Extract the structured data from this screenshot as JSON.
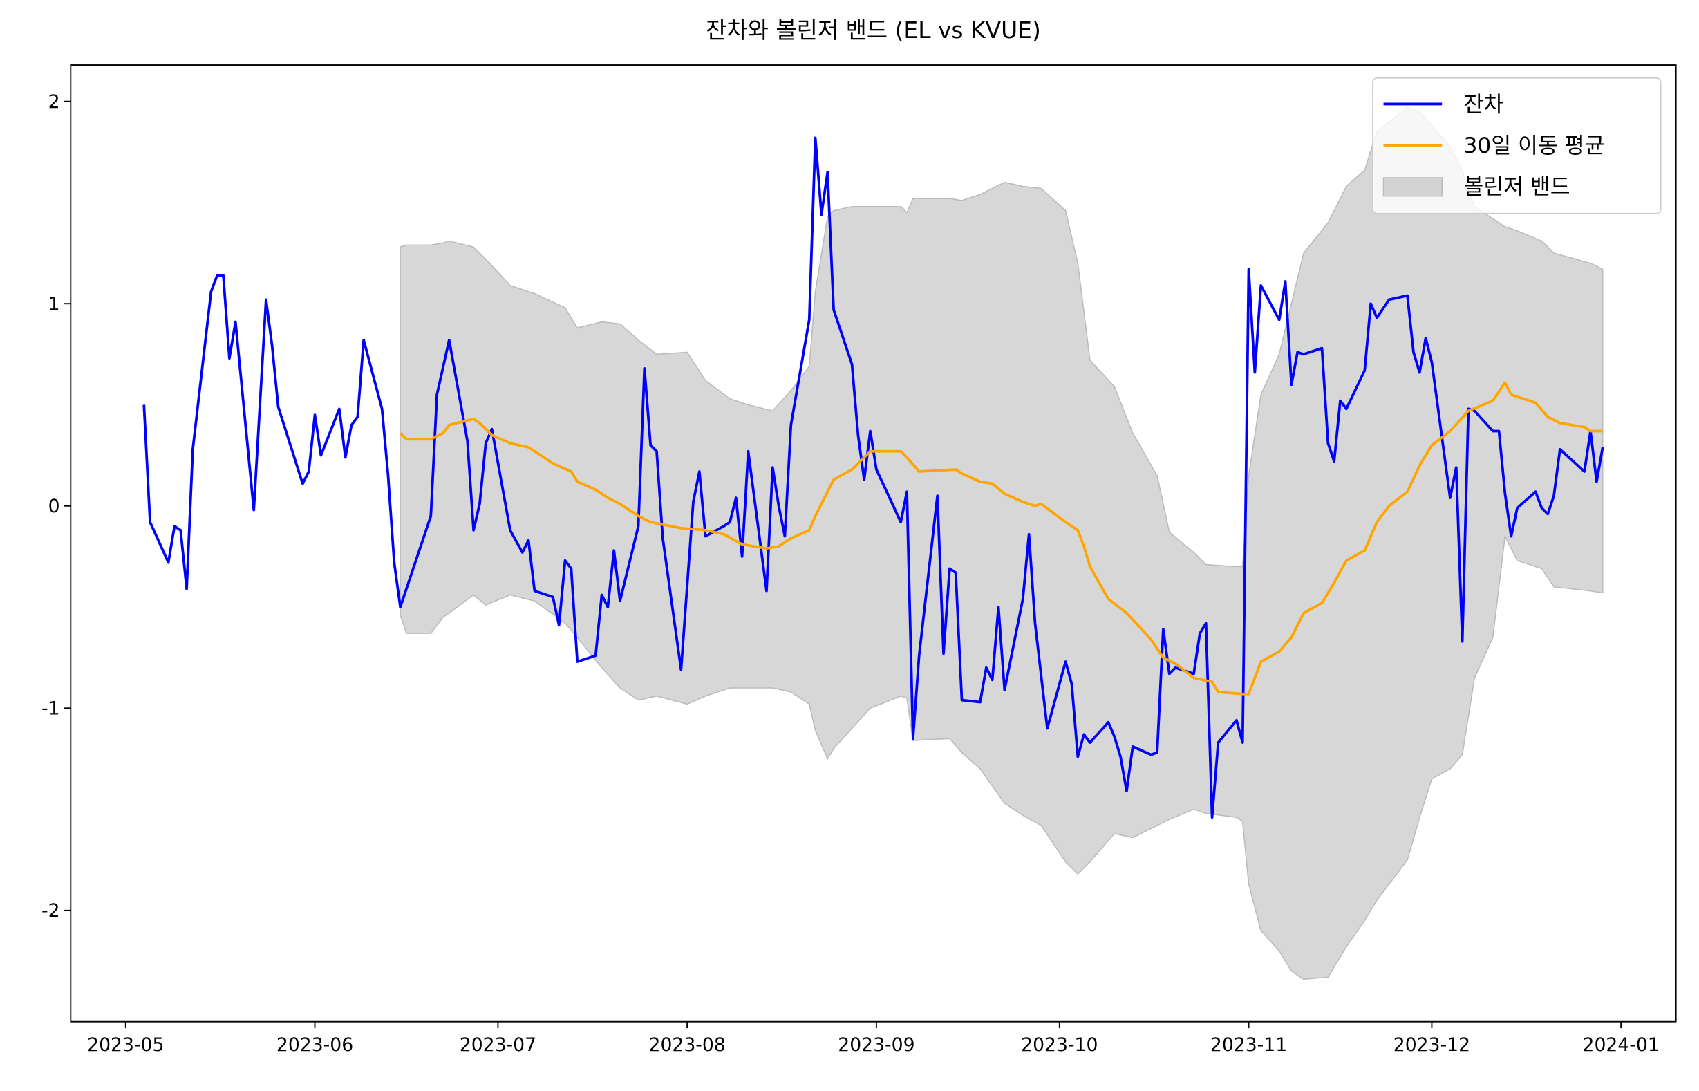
{
  "chart_data": {
    "type": "line",
    "title": "잔차와 볼린저 밴드 (EL vs KVUE)",
    "xlim": [
      "2023-04-22",
      "2024-01-10"
    ],
    "xticks": [
      {
        "value": "2023-05-01",
        "label": "2023-05"
      },
      {
        "value": "2023-06-01",
        "label": "2023-06"
      },
      {
        "value": "2023-07-01",
        "label": "2023-07"
      },
      {
        "value": "2023-08-01",
        "label": "2023-08"
      },
      {
        "value": "2023-09-01",
        "label": "2023-09"
      },
      {
        "value": "2023-10-01",
        "label": "2023-10"
      },
      {
        "value": "2023-11-01",
        "label": "2023-11"
      },
      {
        "value": "2023-12-01",
        "label": "2023-12"
      },
      {
        "value": "2024-01-01",
        "label": "2024-01"
      }
    ],
    "ylim": [
      -2.55,
      2.18
    ],
    "yticks": [
      -2,
      -1,
      0,
      1,
      2
    ],
    "legend": "upper right",
    "series": [
      {
        "name": "잔차",
        "color": "#0000ff",
        "x": [
          "2023-05-04",
          "2023-05-05",
          "2023-05-08",
          "2023-05-09",
          "2023-05-10",
          "2023-05-11",
          "2023-05-12",
          "2023-05-15",
          "2023-05-16",
          "2023-05-17",
          "2023-05-18",
          "2023-05-19",
          "2023-05-22",
          "2023-05-24",
          "2023-05-25",
          "2023-05-26",
          "2023-05-30",
          "2023-05-31",
          "2023-06-01",
          "2023-06-02",
          "2023-06-05",
          "2023-06-06",
          "2023-06-07",
          "2023-06-08",
          "2023-06-09",
          "2023-06-12",
          "2023-06-13",
          "2023-06-14",
          "2023-06-15",
          "2023-06-20",
          "2023-06-21",
          "2023-06-23",
          "2023-06-26",
          "2023-06-27",
          "2023-06-28",
          "2023-06-29",
          "2023-06-30",
          "2023-07-03",
          "2023-07-05",
          "2023-07-06",
          "2023-07-07",
          "2023-07-10",
          "2023-07-11",
          "2023-07-12",
          "2023-07-13",
          "2023-07-14",
          "2023-07-17",
          "2023-07-18",
          "2023-07-19",
          "2023-07-20",
          "2023-07-21",
          "2023-07-24",
          "2023-07-25",
          "2023-07-26",
          "2023-07-27",
          "2023-07-28",
          "2023-07-31",
          "2023-08-02",
          "2023-08-03",
          "2023-08-04",
          "2023-08-07",
          "2023-08-08",
          "2023-08-09",
          "2023-08-10",
          "2023-08-11",
          "2023-08-14",
          "2023-08-15",
          "2023-08-16",
          "2023-08-17",
          "2023-08-18",
          "2023-08-21",
          "2023-08-22",
          "2023-08-23",
          "2023-08-24",
          "2023-08-25",
          "2023-08-28",
          "2023-08-29",
          "2023-08-30",
          "2023-08-31",
          "2023-09-01",
          "2023-09-05",
          "2023-09-06",
          "2023-09-07",
          "2023-09-08",
          "2023-09-11",
          "2023-09-12",
          "2023-09-13",
          "2023-09-14",
          "2023-09-15",
          "2023-09-18",
          "2023-09-19",
          "2023-09-20",
          "2023-09-21",
          "2023-09-22",
          "2023-09-25",
          "2023-09-26",
          "2023-09-27",
          "2023-09-29",
          "2023-10-02",
          "2023-10-03",
          "2023-10-04",
          "2023-10-05",
          "2023-10-06",
          "2023-10-09",
          "2023-10-10",
          "2023-10-11",
          "2023-10-12",
          "2023-10-13",
          "2023-10-16",
          "2023-10-17",
          "2023-10-18",
          "2023-10-19",
          "2023-10-20",
          "2023-10-23",
          "2023-10-24",
          "2023-10-25",
          "2023-10-26",
          "2023-10-27",
          "2023-10-30",
          "2023-10-31",
          "2023-11-01",
          "2023-11-02",
          "2023-11-03",
          "2023-11-06",
          "2023-11-07",
          "2023-11-08",
          "2023-11-09",
          "2023-11-10",
          "2023-11-13",
          "2023-11-14",
          "2023-11-15",
          "2023-11-16",
          "2023-11-17",
          "2023-11-20",
          "2023-11-21",
          "2023-11-22",
          "2023-11-24",
          "2023-11-27",
          "2023-11-28",
          "2023-11-29",
          "2023-11-30",
          "2023-12-01",
          "2023-12-04",
          "2023-12-05",
          "2023-12-06",
          "2023-12-07",
          "2023-12-08",
          "2023-12-11",
          "2023-12-12",
          "2023-12-13",
          "2023-12-14",
          "2023-12-15",
          "2023-12-18",
          "2023-12-19",
          "2023-12-20",
          "2023-12-21",
          "2023-12-22",
          "2023-12-26",
          "2023-12-27",
          "2023-12-28",
          "2023-12-29"
        ],
        "values": [
          0.5,
          -0.08,
          -0.28,
          -0.1,
          -0.12,
          -0.41,
          0.28,
          1.06,
          1.14,
          1.14,
          0.73,
          0.91,
          -0.02,
          1.02,
          0.79,
          0.49,
          0.11,
          0.17,
          0.45,
          0.25,
          0.48,
          0.24,
          0.4,
          0.44,
          0.82,
          0.48,
          0.15,
          -0.28,
          -0.5,
          -0.05,
          0.55,
          0.82,
          0.32,
          -0.12,
          0.01,
          0.31,
          0.38,
          -0.12,
          -0.23,
          -0.17,
          -0.42,
          -0.45,
          -0.59,
          -0.27,
          -0.31,
          -0.77,
          -0.74,
          -0.44,
          -0.5,
          -0.22,
          -0.47,
          -0.1,
          0.68,
          0.3,
          0.27,
          -0.16,
          -0.81,
          0.02,
          0.17,
          -0.15,
          -0.1,
          -0.08,
          0.04,
          -0.25,
          0.27,
          -0.42,
          0.19,
          0.0,
          -0.15,
          0.4,
          0.92,
          1.82,
          1.44,
          1.65,
          0.97,
          0.7,
          0.35,
          0.13,
          0.37,
          0.18,
          -0.08,
          0.07,
          -1.15,
          -0.74,
          0.05,
          -0.73,
          -0.31,
          -0.33,
          -0.96,
          -0.97,
          -0.8,
          -0.86,
          -0.5,
          -0.91,
          -0.46,
          -0.14,
          -0.58,
          -1.1,
          -0.77,
          -0.88,
          -1.24,
          -1.13,
          -1.17,
          -1.07,
          -1.14,
          -1.24,
          -1.41,
          -1.19,
          -1.23,
          -1.22,
          -0.61,
          -0.83,
          -0.8,
          -0.83,
          -0.63,
          -0.58,
          -1.54,
          -1.17,
          -1.06,
          -1.17,
          1.17,
          0.66,
          1.09,
          0.92,
          1.11,
          0.6,
          0.76,
          0.75,
          0.78,
          0.31,
          0.22,
          0.52,
          0.48,
          0.67,
          1.0,
          0.93,
          1.02,
          1.04,
          0.76,
          0.66,
          0.83,
          0.71,
          0.04,
          0.19,
          -0.67,
          0.48,
          0.47,
          0.37,
          0.37,
          0.06,
          -0.15,
          -0.01,
          0.07,
          -0.01,
          -0.04,
          0.05,
          0.28,
          0.17,
          0.37,
          0.12,
          0.29
        ]
      },
      {
        "name": "30일 이동 평균",
        "color": "#ffa500",
        "x": [
          "2023-06-15",
          "2023-06-16",
          "2023-06-20",
          "2023-06-22",
          "2023-06-23",
          "2023-06-27",
          "2023-06-28",
          "2023-06-30",
          "2023-07-03",
          "2023-07-06",
          "2023-07-10",
          "2023-07-13",
          "2023-07-14",
          "2023-07-17",
          "2023-07-19",
          "2023-07-21",
          "2023-07-24",
          "2023-07-26",
          "2023-07-31",
          "2023-08-04",
          "2023-08-07",
          "2023-08-10",
          "2023-08-14",
          "2023-08-16",
          "2023-08-18",
          "2023-08-21",
          "2023-08-22",
          "2023-08-25",
          "2023-08-28",
          "2023-08-31",
          "2023-09-05",
          "2023-09-06",
          "2023-09-08",
          "2023-09-14",
          "2023-09-15",
          "2023-09-18",
          "2023-09-20",
          "2023-09-22",
          "2023-09-25",
          "2023-09-27",
          "2023-09-28",
          "2023-10-02",
          "2023-10-04",
          "2023-10-05",
          "2023-10-06",
          "2023-10-09",
          "2023-10-12",
          "2023-10-16",
          "2023-10-18",
          "2023-10-20",
          "2023-10-23",
          "2023-10-26",
          "2023-10-27",
          "2023-10-31",
          "2023-11-01",
          "2023-11-03",
          "2023-11-06",
          "2023-11-08",
          "2023-11-10",
          "2023-11-13",
          "2023-11-15",
          "2023-11-17",
          "2023-11-20",
          "2023-11-22",
          "2023-11-24",
          "2023-11-27",
          "2023-11-29",
          "2023-12-01",
          "2023-12-04",
          "2023-12-07",
          "2023-12-11",
          "2023-12-13",
          "2023-12-14",
          "2023-12-18",
          "2023-12-20",
          "2023-12-22",
          "2023-12-26",
          "2023-12-27",
          "2023-12-29"
        ],
        "values": [
          0.36,
          0.33,
          0.33,
          0.36,
          0.4,
          0.43,
          0.41,
          0.35,
          0.31,
          0.29,
          0.21,
          0.17,
          0.12,
          0.08,
          0.04,
          0.01,
          -0.05,
          -0.08,
          -0.11,
          -0.12,
          -0.14,
          -0.19,
          -0.21,
          -0.2,
          -0.16,
          -0.12,
          -0.05,
          0.13,
          0.18,
          0.27,
          0.27,
          0.24,
          0.17,
          0.18,
          0.16,
          0.12,
          0.11,
          0.06,
          0.02,
          0.0,
          0.01,
          -0.08,
          -0.12,
          -0.2,
          -0.3,
          -0.46,
          -0.53,
          -0.66,
          -0.75,
          -0.78,
          -0.85,
          -0.87,
          -0.92,
          -0.93,
          -0.93,
          -0.77,
          -0.72,
          -0.65,
          -0.53,
          -0.48,
          -0.38,
          -0.27,
          -0.22,
          -0.08,
          0.0,
          0.07,
          0.2,
          0.3,
          0.37,
          0.47,
          0.52,
          0.61,
          0.55,
          0.51,
          0.44,
          0.41,
          0.39,
          0.37,
          0.37
        ]
      },
      {
        "name": "볼린저 밴드",
        "color": "#d3d3d3",
        "x": [
          "2023-06-15",
          "2023-06-16",
          "2023-06-20",
          "2023-06-22",
          "2023-06-23",
          "2023-06-27",
          "2023-06-29",
          "2023-07-03",
          "2023-07-07",
          "2023-07-12",
          "2023-07-14",
          "2023-07-18",
          "2023-07-21",
          "2023-07-24",
          "2023-07-27",
          "2023-08-01",
          "2023-08-04",
          "2023-08-08",
          "2023-08-11",
          "2023-08-15",
          "2023-08-18",
          "2023-08-21",
          "2023-08-22",
          "2023-08-24",
          "2023-08-25",
          "2023-08-28",
          "2023-08-31",
          "2023-09-05",
          "2023-09-06",
          "2023-09-07",
          "2023-09-13",
          "2023-09-15",
          "2023-09-18",
          "2023-09-22",
          "2023-09-25",
          "2023-09-28",
          "2023-10-02",
          "2023-10-04",
          "2023-10-06",
          "2023-10-10",
          "2023-10-13",
          "2023-10-17",
          "2023-10-19",
          "2023-10-23",
          "2023-10-25",
          "2023-10-30",
          "2023-10-31",
          "2023-11-01",
          "2023-11-03",
          "2023-11-06",
          "2023-11-08",
          "2023-11-10",
          "2023-11-14",
          "2023-11-17",
          "2023-11-20",
          "2023-11-22",
          "2023-11-27",
          "2023-11-29",
          "2023-12-01",
          "2023-12-04",
          "2023-12-06",
          "2023-12-08",
          "2023-12-11",
          "2023-12-13",
          "2023-12-15",
          "2023-12-19",
          "2023-12-21",
          "2023-12-27",
          "2023-12-29"
        ],
        "upper": [
          1.28,
          1.29,
          1.29,
          1.3,
          1.31,
          1.28,
          1.22,
          1.09,
          1.05,
          0.98,
          0.88,
          0.91,
          0.9,
          0.82,
          0.75,
          0.76,
          0.62,
          0.53,
          0.5,
          0.47,
          0.57,
          0.69,
          1.06,
          1.43,
          1.46,
          1.48,
          1.48,
          1.48,
          1.45,
          1.52,
          1.52,
          1.51,
          1.54,
          1.6,
          1.58,
          1.57,
          1.46,
          1.2,
          0.72,
          0.59,
          0.36,
          0.15,
          -0.13,
          -0.23,
          -0.29,
          -0.3,
          -0.3,
          0.15,
          0.55,
          0.75,
          1.0,
          1.25,
          1.4,
          1.58,
          1.66,
          1.85,
          1.97,
          1.95,
          1.88,
          1.78,
          1.66,
          1.48,
          1.42,
          1.38,
          1.36,
          1.31,
          1.25,
          1.2,
          1.17
        ],
        "lower": [
          -0.54,
          -0.63,
          -0.63,
          -0.55,
          -0.53,
          -0.44,
          -0.49,
          -0.44,
          -0.47,
          -0.58,
          -0.65,
          -0.8,
          -0.9,
          -0.96,
          -0.94,
          -0.98,
          -0.94,
          -0.9,
          -0.9,
          -0.9,
          -0.92,
          -0.98,
          -1.11,
          -1.25,
          -1.2,
          -1.1,
          -1.0,
          -0.94,
          -0.95,
          -1.16,
          -1.15,
          -1.22,
          -1.3,
          -1.47,
          -1.53,
          -1.58,
          -1.76,
          -1.82,
          -1.76,
          -1.62,
          -1.64,
          -1.58,
          -1.55,
          -1.5,
          -1.52,
          -1.54,
          -1.56,
          -1.87,
          -2.1,
          -2.2,
          -2.3,
          -2.34,
          -2.33,
          -2.18,
          -2.05,
          -1.95,
          -1.75,
          -1.54,
          -1.35,
          -1.3,
          -1.23,
          -0.85,
          -0.65,
          -0.15,
          -0.27,
          -0.31,
          -0.4,
          -0.42,
          -0.43
        ]
      }
    ]
  }
}
